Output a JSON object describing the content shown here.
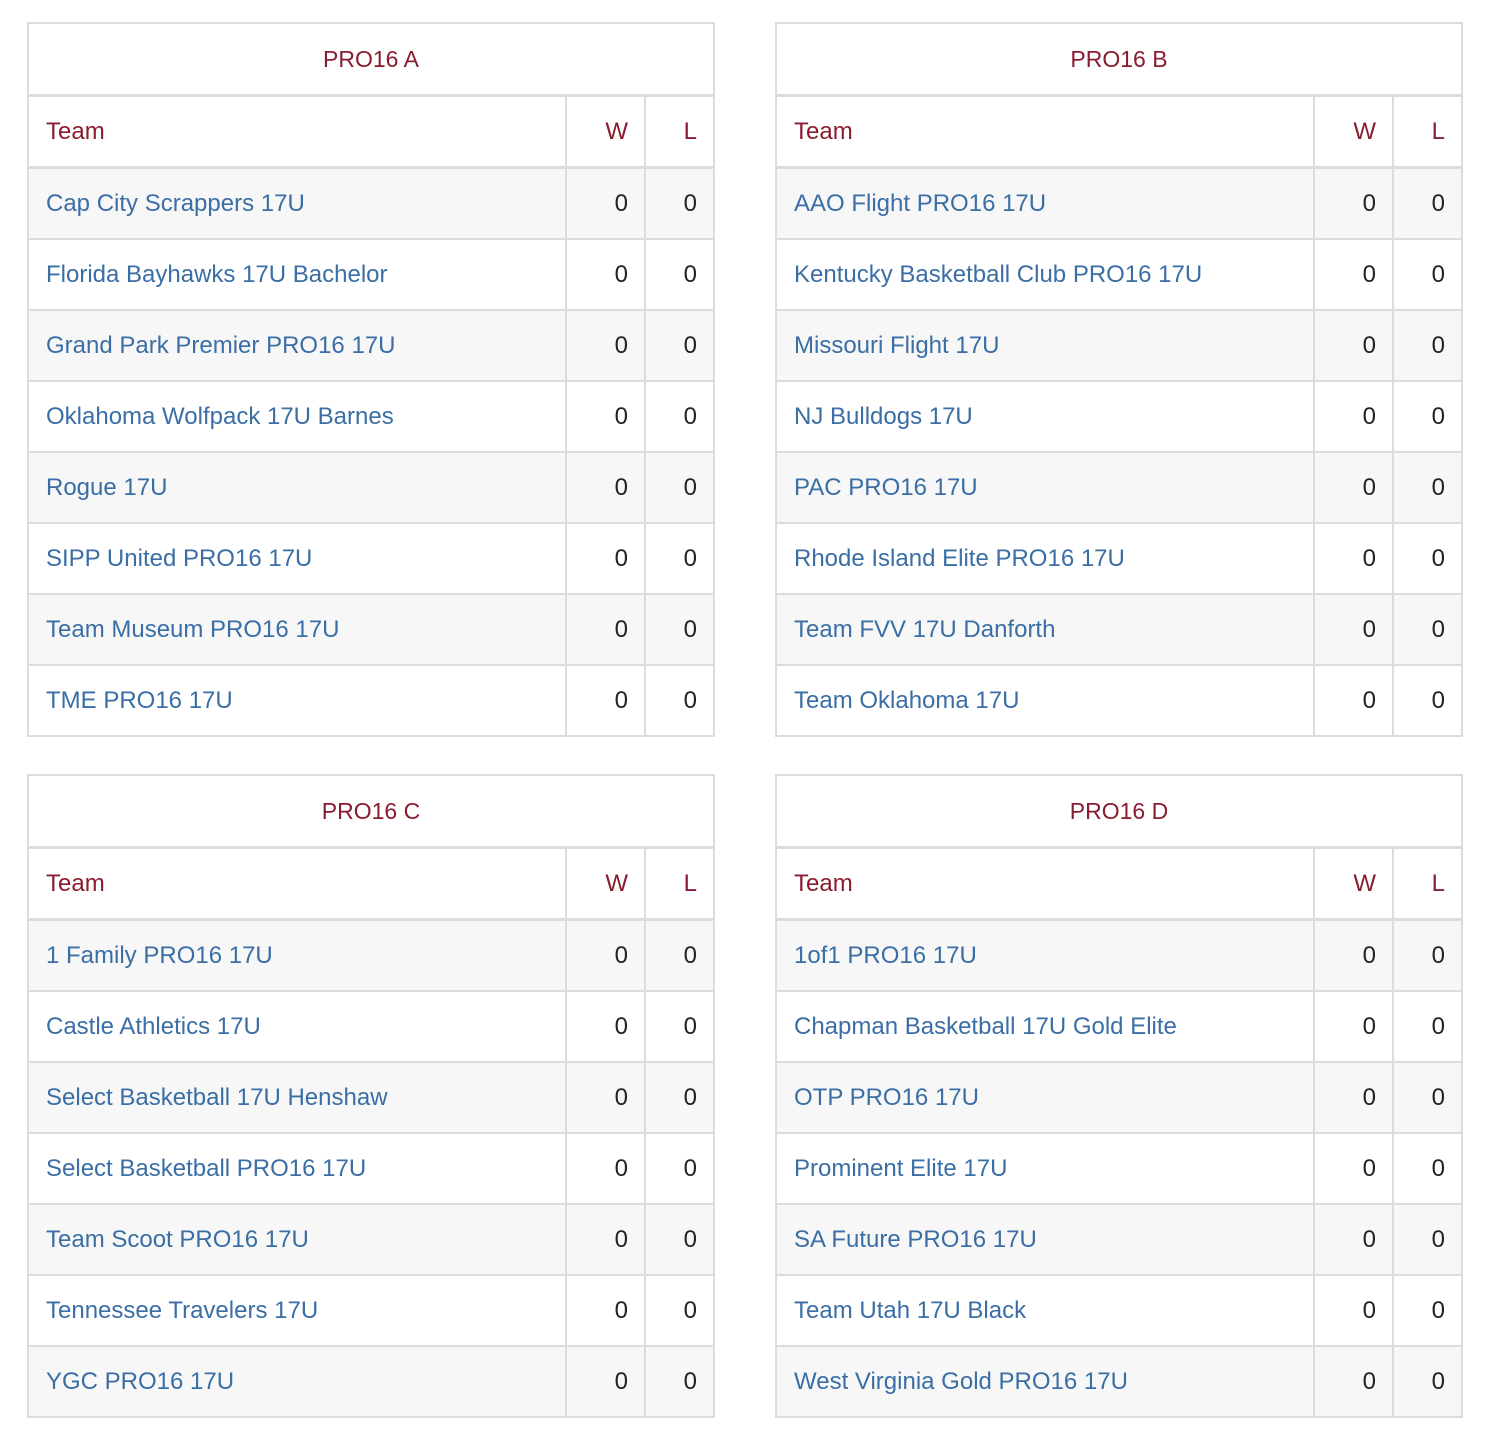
{
  "columns": {
    "team": "Team",
    "w": "W",
    "l": "L"
  },
  "groups": [
    {
      "title": "PRO16 A",
      "teams": [
        {
          "name": "Cap City Scrappers 17U",
          "w": "0",
          "l": "0"
        },
        {
          "name": "Florida Bayhawks 17U Bachelor",
          "w": "0",
          "l": "0"
        },
        {
          "name": "Grand Park Premier PRO16 17U",
          "w": "0",
          "l": "0"
        },
        {
          "name": "Oklahoma Wolfpack 17U Barnes",
          "w": "0",
          "l": "0"
        },
        {
          "name": "Rogue 17U",
          "w": "0",
          "l": "0"
        },
        {
          "name": "SIPP United PRO16 17U",
          "w": "0",
          "l": "0"
        },
        {
          "name": "Team Museum PRO16 17U",
          "w": "0",
          "l": "0"
        },
        {
          "name": "TME PRO16 17U",
          "w": "0",
          "l": "0"
        }
      ]
    },
    {
      "title": "PRO16 B",
      "teams": [
        {
          "name": "AAO Flight PRO16 17U",
          "w": "0",
          "l": "0"
        },
        {
          "name": "Kentucky Basketball Club PRO16 17U",
          "w": "0",
          "l": "0"
        },
        {
          "name": "Missouri Flight 17U",
          "w": "0",
          "l": "0"
        },
        {
          "name": "NJ Bulldogs 17U",
          "w": "0",
          "l": "0"
        },
        {
          "name": "PAC PRO16 17U",
          "w": "0",
          "l": "0"
        },
        {
          "name": "Rhode Island Elite PRO16 17U",
          "w": "0",
          "l": "0"
        },
        {
          "name": "Team FVV 17U Danforth",
          "w": "0",
          "l": "0"
        },
        {
          "name": "Team Oklahoma 17U",
          "w": "0",
          "l": "0"
        }
      ]
    },
    {
      "title": "PRO16 C",
      "teams": [
        {
          "name": "1 Family PRO16 17U",
          "w": "0",
          "l": "0"
        },
        {
          "name": "Castle Athletics 17U",
          "w": "0",
          "l": "0"
        },
        {
          "name": "Select Basketball 17U Henshaw",
          "w": "0",
          "l": "0"
        },
        {
          "name": "Select Basketball PRO16 17U",
          "w": "0",
          "l": "0"
        },
        {
          "name": "Team Scoot PRO16 17U",
          "w": "0",
          "l": "0"
        },
        {
          "name": "Tennessee Travelers 17U",
          "w": "0",
          "l": "0"
        },
        {
          "name": "YGC PRO16 17U",
          "w": "0",
          "l": "0"
        }
      ]
    },
    {
      "title": "PRO16 D",
      "teams": [
        {
          "name": "1of1 PRO16 17U",
          "w": "0",
          "l": "0"
        },
        {
          "name": "Chapman Basketball 17U Gold Elite",
          "w": "0",
          "l": "0"
        },
        {
          "name": "OTP PRO16 17U",
          "w": "0",
          "l": "0"
        },
        {
          "name": "Prominent Elite 17U",
          "w": "0",
          "l": "0"
        },
        {
          "name": "SA Future PRO16 17U",
          "w": "0",
          "l": "0"
        },
        {
          "name": "Team Utah 17U Black",
          "w": "0",
          "l": "0"
        },
        {
          "name": "West Virginia Gold PRO16 17U",
          "w": "0",
          "l": "0"
        }
      ]
    }
  ],
  "colors": {
    "header_text": "#8a1c2f",
    "team_link": "#3a6ea5",
    "border": "#dcdcdc",
    "stripe": "#f7f7f7"
  }
}
